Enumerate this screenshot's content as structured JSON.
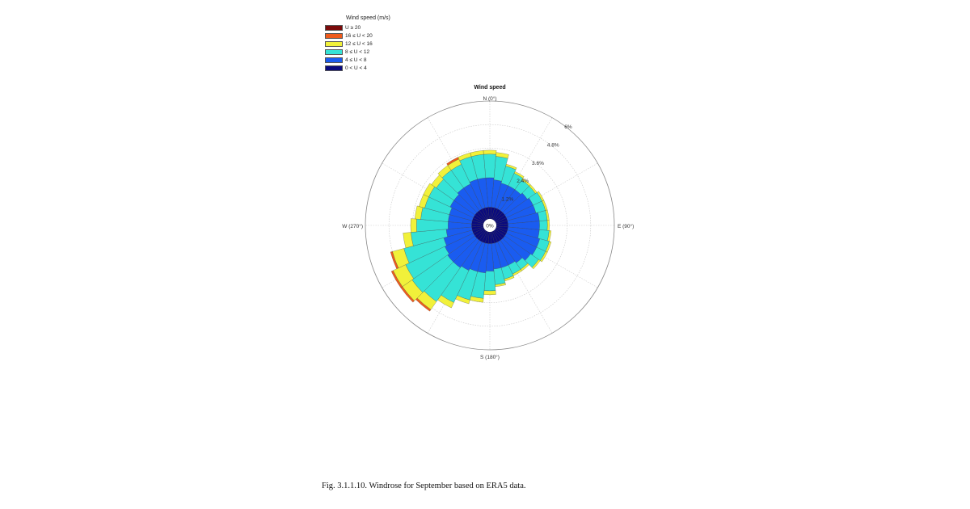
{
  "chart_data": {
    "type": "windrose",
    "title": "Wind speed",
    "legend": {
      "title": "Wind speed (m/s)",
      "placement": "top-left",
      "bins": [
        {
          "label": "U ≥ 20",
          "color": "#7a0a0a"
        },
        {
          "label": "16 ≤ U < 20",
          "color": "#ef5b1c"
        },
        {
          "label": "12 ≤ U < 16",
          "color": "#f1f13a"
        },
        {
          "label": "8 ≤ U < 12",
          "color": "#35e3d6"
        },
        {
          "label": "4 ≤ U < 8",
          "color": "#1a5cf0"
        },
        {
          "label": "0 < U < 4",
          "color": "#0a0a7e"
        }
      ]
    },
    "direction_labels": {
      "north": "N (0°)",
      "east": "E (90°)",
      "south": "S (180°)",
      "west": "W (270°)"
    },
    "radial_axis": {
      "max": 6,
      "ticks": [
        0,
        1.2,
        2.4,
        3.6,
        4.8,
        6
      ],
      "tick_labels": [
        "0%",
        "1.2%",
        "2.4%",
        "3.6%",
        "4.8%",
        "6%"
      ]
    },
    "sector_count": 36,
    "sector_width_deg": 10,
    "bins_order": [
      "0 < U < 4",
      "4 ≤ U < 8",
      "8 ≤ U < 12",
      "12 ≤ U < 16",
      "16 ≤ U < 20",
      "U ≥ 20"
    ],
    "sectors": [
      {
        "dir": 0,
        "pct": [
          0.6,
          1.5,
          1.2,
          0.2,
          0.0,
          0.0
        ]
      },
      {
        "dir": 10,
        "pct": [
          0.6,
          1.4,
          1.2,
          0.2,
          0.0,
          0.0
        ]
      },
      {
        "dir": 20,
        "pct": [
          0.6,
          1.3,
          0.9,
          0.1,
          0.0,
          0.0
        ]
      },
      {
        "dir": 30,
        "pct": [
          0.6,
          1.3,
          0.7,
          0.1,
          0.0,
          0.0
        ]
      },
      {
        "dir": 40,
        "pct": [
          0.6,
          1.3,
          0.6,
          0.1,
          0.0,
          0.0
        ]
      },
      {
        "dir": 50,
        "pct": [
          0.6,
          1.4,
          0.5,
          0.1,
          0.0,
          0.0
        ]
      },
      {
        "dir": 60,
        "pct": [
          0.6,
          1.5,
          0.5,
          0.1,
          0.0,
          0.0
        ]
      },
      {
        "dir": 70,
        "pct": [
          0.6,
          1.5,
          0.5,
          0.1,
          0.0,
          0.0
        ]
      },
      {
        "dir": 80,
        "pct": [
          0.6,
          1.6,
          0.4,
          0.1,
          0.0,
          0.0
        ]
      },
      {
        "dir": 90,
        "pct": [
          0.6,
          1.6,
          0.4,
          0.1,
          0.0,
          0.0
        ]
      },
      {
        "dir": 100,
        "pct": [
          0.6,
          1.6,
          0.5,
          0.1,
          0.0,
          0.0
        ]
      },
      {
        "dir": 110,
        "pct": [
          0.6,
          1.7,
          0.5,
          0.1,
          0.0,
          0.0
        ]
      },
      {
        "dir": 120,
        "pct": [
          0.6,
          1.7,
          0.5,
          0.1,
          0.0,
          0.0
        ]
      },
      {
        "dir": 130,
        "pct": [
          0.6,
          1.6,
          0.5,
          0.1,
          0.0,
          0.0
        ]
      },
      {
        "dir": 140,
        "pct": [
          0.6,
          1.4,
          0.4,
          0.1,
          0.0,
          0.0
        ]
      },
      {
        "dir": 150,
        "pct": [
          0.6,
          1.3,
          0.5,
          0.1,
          0.0,
          0.0
        ]
      },
      {
        "dir": 160,
        "pct": [
          0.6,
          1.3,
          0.6,
          0.1,
          0.0,
          0.0
        ]
      },
      {
        "dir": 170,
        "pct": [
          0.6,
          1.3,
          0.8,
          0.1,
          0.0,
          0.0
        ]
      },
      {
        "dir": 180,
        "pct": [
          0.6,
          1.4,
          1.0,
          0.2,
          0.0,
          0.0
        ]
      },
      {
        "dir": 190,
        "pct": [
          0.6,
          1.5,
          1.3,
          0.2,
          0.0,
          0.0
        ]
      },
      {
        "dir": 200,
        "pct": [
          0.6,
          1.5,
          1.5,
          0.2,
          0.0,
          0.0
        ]
      },
      {
        "dir": 210,
        "pct": [
          0.6,
          1.6,
          1.8,
          0.3,
          0.0,
          0.0
        ]
      },
      {
        "dir": 220,
        "pct": [
          0.6,
          1.7,
          2.1,
          0.5,
          0.1,
          0.0
        ]
      },
      {
        "dir": 230,
        "pct": [
          0.6,
          1.7,
          2.2,
          0.6,
          0.1,
          0.0
        ]
      },
      {
        "dir": 240,
        "pct": [
          0.6,
          1.6,
          2.2,
          0.7,
          0.1,
          0.0
        ]
      },
      {
        "dir": 250,
        "pct": [
          0.6,
          1.5,
          2.1,
          0.6,
          0.1,
          0.0
        ]
      },
      {
        "dir": 260,
        "pct": [
          0.6,
          1.3,
          1.8,
          0.4,
          0.0,
          0.0
        ]
      },
      {
        "dir": 270,
        "pct": [
          0.6,
          1.2,
          1.6,
          0.3,
          0.0,
          0.0
        ]
      },
      {
        "dir": 280,
        "pct": [
          0.6,
          1.2,
          1.4,
          0.3,
          0.0,
          0.0
        ]
      },
      {
        "dir": 290,
        "pct": [
          0.6,
          1.2,
          1.3,
          0.3,
          0.0,
          0.0
        ]
      },
      {
        "dir": 300,
        "pct": [
          0.6,
          1.3,
          1.2,
          0.3,
          0.0,
          0.0
        ]
      },
      {
        "dir": 310,
        "pct": [
          0.6,
          1.3,
          1.1,
          0.3,
          0.0,
          0.0
        ]
      },
      {
        "dir": 320,
        "pct": [
          0.6,
          1.4,
          1.1,
          0.3,
          0.0,
          0.0
        ]
      },
      {
        "dir": 330,
        "pct": [
          0.6,
          1.4,
          1.1,
          0.3,
          0.1,
          0.0
        ]
      },
      {
        "dir": 340,
        "pct": [
          0.6,
          1.5,
          1.2,
          0.2,
          0.0,
          0.0
        ]
      },
      {
        "dir": 350,
        "pct": [
          0.6,
          1.5,
          1.2,
          0.2,
          0.0,
          0.0
        ]
      }
    ]
  },
  "caption": "Fig. 3.1.1.10. Windrose for September based on ERA5 data."
}
